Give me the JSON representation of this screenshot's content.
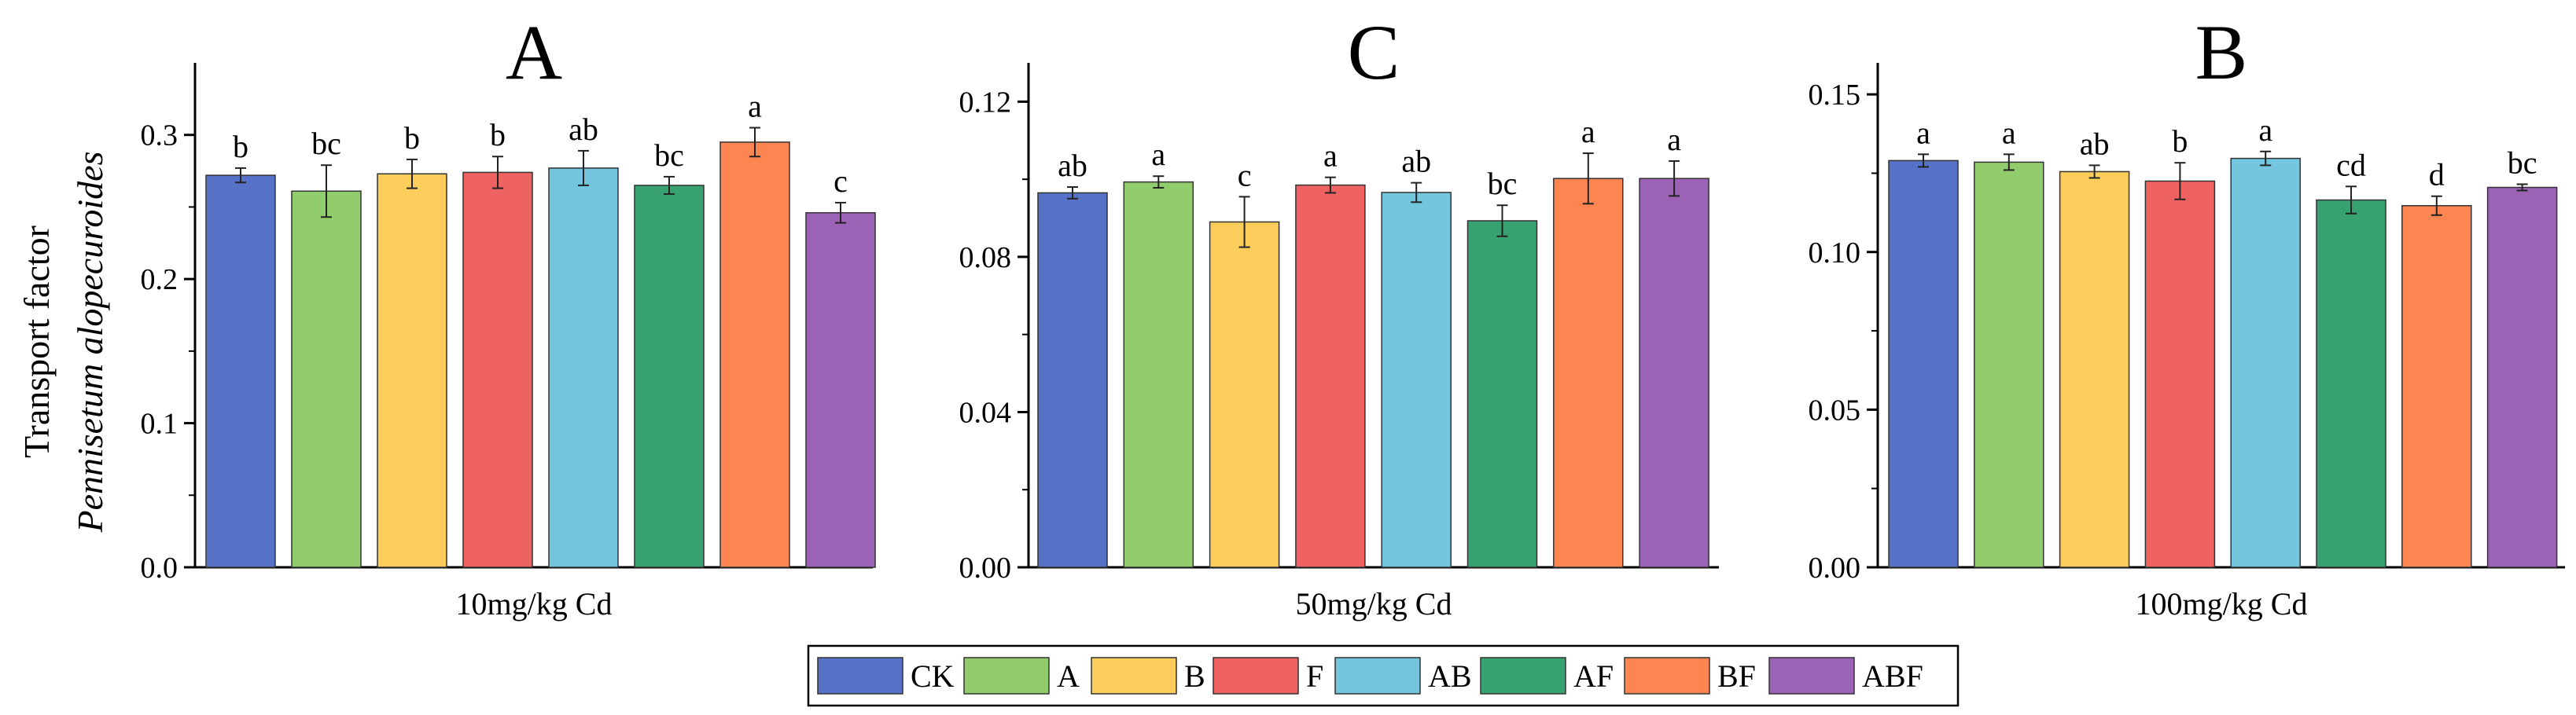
{
  "ylabel_line1": "Transport factor",
  "ylabel_line2": "Pennisetum alopecuroides",
  "legend": [
    {
      "label": "CK",
      "color": "#5572C6"
    },
    {
      "label": "A",
      "color": "#92CD6D"
    },
    {
      "label": "B",
      "color": "#FDCD5B"
    },
    {
      "label": "F",
      "color": "#EF6262"
    },
    {
      "label": "AB",
      "color": "#74C5DE"
    },
    {
      "label": "AF",
      "color": "#37A16F"
    },
    {
      "label": "BF",
      "color": "#FD8552"
    },
    {
      "label": "ABF",
      "color": "#9B62B5"
    }
  ],
  "chart_data": [
    {
      "type": "bar",
      "title": "A",
      "xlabel": "10mg/kg Cd",
      "ylabel": "Transport factor Pennisetum alopecuroides",
      "ylim": [
        0,
        0.35
      ],
      "yticks": [
        0.0,
        0.1,
        0.2,
        0.3
      ],
      "ytick_labels": [
        "0.0",
        "0.1",
        "0.2",
        "0.3"
      ],
      "categories": [
        "CK",
        "A",
        "B",
        "F",
        "AB",
        "AF",
        "BF",
        "ABF"
      ],
      "values": [
        0.272,
        0.261,
        0.273,
        0.274,
        0.277,
        0.265,
        0.295,
        0.246
      ],
      "errors": [
        0.005,
        0.018,
        0.01,
        0.011,
        0.012,
        0.006,
        0.01,
        0.007
      ],
      "letters": [
        "b",
        "bc",
        "b",
        "b",
        "ab",
        "bc",
        "a",
        "c"
      ]
    },
    {
      "type": "bar",
      "title": "C",
      "xlabel": "50mg/kg Cd",
      "ylim": [
        0,
        0.13
      ],
      "yticks": [
        0.0,
        0.04,
        0.08,
        0.12
      ],
      "ytick_labels": [
        "0.00",
        "0.04",
        "0.08",
        "0.12"
      ],
      "categories": [
        "CK",
        "A",
        "B",
        "F",
        "AB",
        "AF",
        "BF",
        "ABF"
      ],
      "values": [
        0.0965,
        0.0993,
        0.089,
        0.0985,
        0.0966,
        0.0893,
        0.1002,
        0.1002
      ],
      "errors": [
        0.0015,
        0.0015,
        0.0065,
        0.002,
        0.0025,
        0.004,
        0.0065,
        0.0045
      ],
      "letters": [
        "ab",
        "a",
        "c",
        "a",
        "ab",
        "bc",
        "a",
        "a"
      ]
    },
    {
      "type": "bar",
      "title": "B",
      "xlabel": "100mg/kg Cd",
      "ylim": [
        0,
        0.16
      ],
      "yticks": [
        0.0,
        0.05,
        0.1,
        0.15
      ],
      "ytick_labels": [
        "0.00",
        "0.05",
        "0.10",
        "0.15"
      ],
      "categories": [
        "CK",
        "A",
        "B",
        "F",
        "AB",
        "AF",
        "BF",
        "ABF"
      ],
      "values": [
        0.129,
        0.1285,
        0.1255,
        0.1225,
        0.1297,
        0.1165,
        0.1147,
        0.1205
      ],
      "errors": [
        0.002,
        0.0025,
        0.002,
        0.0058,
        0.0022,
        0.0043,
        0.003,
        0.001
      ],
      "letters": [
        "a",
        "a",
        "ab",
        "b",
        "a",
        "cd",
        "d",
        "bc"
      ]
    }
  ]
}
